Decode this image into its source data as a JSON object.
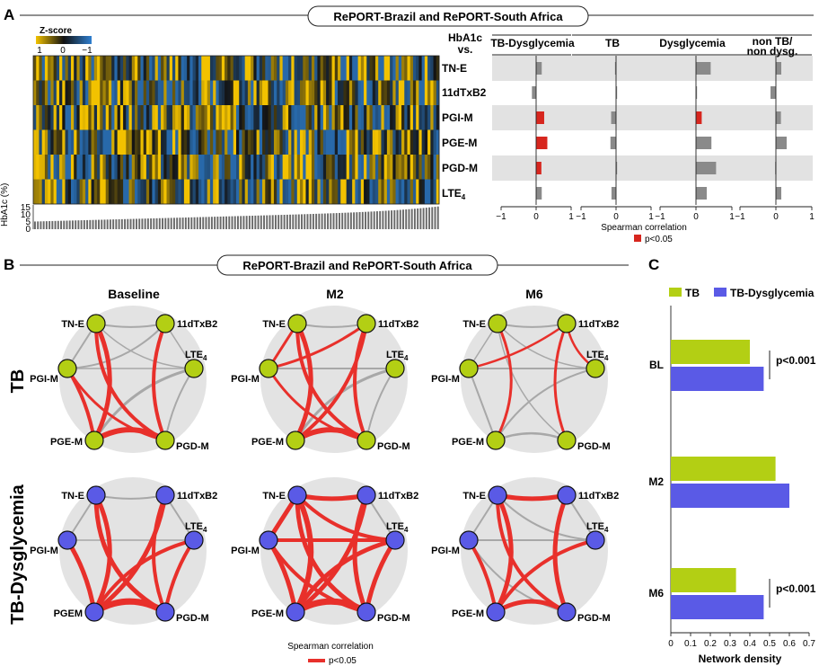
{
  "panel_a": {
    "letter": "A",
    "header": "RePORT-Brazil and RePORT-South Africa",
    "zscore_title": "Z-score",
    "zscore_ticks": [
      "1",
      "0",
      "−1"
    ],
    "hba1c_axis_label": "HbA1c (%)",
    "hba1c_ticks": [
      "15",
      "10",
      "5",
      "0"
    ],
    "metabolites": [
      "TN-E",
      "11dTxB2",
      "PGI-M",
      "PGE-M",
      "PGD-M",
      "LTE4"
    ],
    "corr_header": "HbA1c vs.",
    "groups": [
      "TB-Dysglycemia",
      "TB",
      "Dysglycemia",
      "non TB/ non dysg."
    ],
    "x_ticks": [
      "−1",
      "0",
      "1"
    ],
    "x_axis_label": "Spearman correlation",
    "legend_label": "p<0.05",
    "colors": {
      "significant": "#d7261e",
      "nonsignificant": "#8a8a8a",
      "band": "#e2e2e2",
      "heat_high": "#f2c200",
      "heat_low": "#1f5fa0"
    }
  },
  "panel_b": {
    "letter": "B",
    "header": "RePORT-Brazil and RePORT-South Africa",
    "column_titles": [
      "Baseline",
      "M2",
      "M6"
    ],
    "row_labels": [
      "TB",
      "TB-Dysglycemia"
    ],
    "node_labels_top": [
      "TN-E",
      "11dTxB2",
      "LTE4",
      "PGI-M",
      "PGE-M",
      "PGD-M"
    ],
    "pgem_alt_label": "PGEM",
    "legend_title": "Spearman correlation",
    "legend_label": "p<0.05",
    "colors": {
      "tb_node": "#b3cf14",
      "tbdys_node": "#5a5ae6",
      "sig_edge": "#e8302b",
      "ns_edge": "#a8a8a8",
      "disc": "#e3e3e3"
    }
  },
  "panel_c": {
    "letter": "C",
    "legend": [
      "TB",
      "TB-Dysglycemia"
    ],
    "x_axis_label": "Network density",
    "annotations": [
      "p<0.001",
      "p<0.001"
    ]
  },
  "chart_data": [
    {
      "type": "heatmap",
      "title": "",
      "rows": [
        "TN-E",
        "11dTxB2",
        "PGI-M",
        "PGE-M",
        "PGD-M",
        "LTE4"
      ],
      "colorbar": {
        "label": "Z-score",
        "range": [
          -1,
          1
        ]
      },
      "bottom_bar_label": "HbA1c (%)",
      "bottom_bar_range": [
        0,
        15
      ]
    },
    {
      "type": "bar",
      "orientation": "horizontal",
      "title": "HbA1c vs.",
      "categories": [
        "TN-E",
        "11dTxB2",
        "PGI-M",
        "PGE-M",
        "PGD-M",
        "LTE4"
      ],
      "xlabel": "Spearman correlation",
      "xlim": [
        -1,
        1
      ],
      "series": [
        {
          "name": "TB-Dysglycemia",
          "values": [
            0.16,
            -0.12,
            0.23,
            0.32,
            0.15,
            0.16
          ],
          "significant": [
            false,
            false,
            true,
            true,
            true,
            false
          ]
        },
        {
          "name": "TB",
          "values": [
            -0.03,
            0.0,
            -0.14,
            -0.16,
            0.03,
            -0.13
          ],
          "significant": [
            false,
            false,
            false,
            false,
            false,
            false
          ]
        },
        {
          "name": "Dysglycemia",
          "values": [
            0.41,
            0.02,
            0.16,
            0.43,
            0.56,
            0.3
          ],
          "significant": [
            false,
            false,
            true,
            false,
            false,
            false
          ]
        },
        {
          "name": "non TB/ non dysg.",
          "values": [
            0.15,
            -0.15,
            0.14,
            0.3,
            -0.02,
            0.15
          ],
          "significant": [
            false,
            false,
            false,
            false,
            false,
            false
          ]
        }
      ]
    },
    {
      "type": "bar",
      "orientation": "horizontal",
      "categories": [
        "BL",
        "M2",
        "M6"
      ],
      "xlabel": "Network density",
      "xlim": [
        0,
        0.7
      ],
      "x_ticks": [
        "0",
        "0.1",
        "0.2",
        "0.3",
        "0.4",
        "0.5",
        "0.6",
        "0.7"
      ],
      "series": [
        {
          "name": "TB",
          "values": [
            0.4,
            0.53,
            0.33
          ]
        },
        {
          "name": "TB-Dysglycemia",
          "values": [
            0.47,
            0.6,
            0.47
          ]
        }
      ],
      "colors": {
        "TB": "#b3cf14",
        "TB-Dysglycemia": "#5a5ae6"
      }
    }
  ]
}
